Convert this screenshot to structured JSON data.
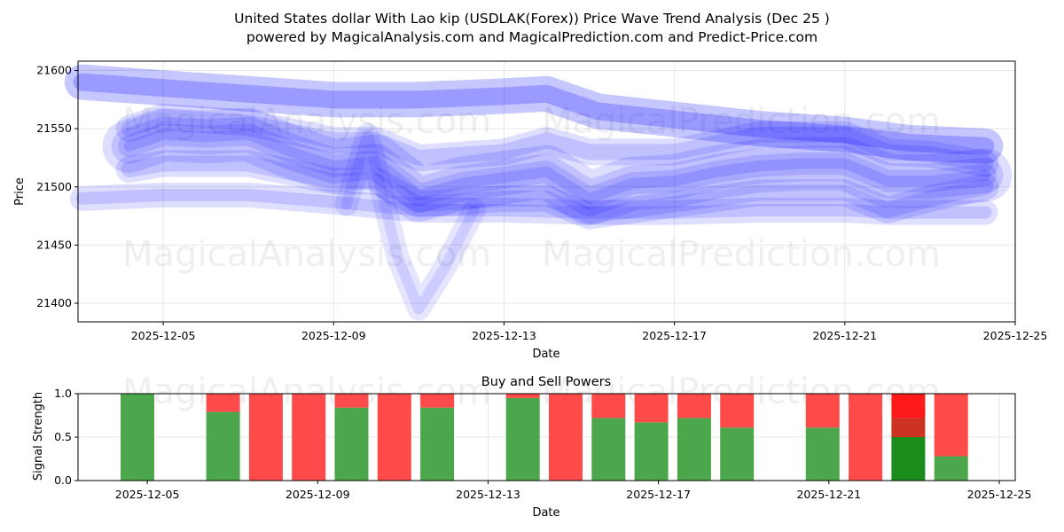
{
  "title_line1": "United States dollar With Lao kip (USDLAK(Forex)) Price Wave Trend Analysis (Dec 25 )",
  "title_line2": "powered by MagicalAnalysis.com and MagicalPrediction.com and Predict-Price.com",
  "watermark": [
    "MagicalAnalysis.com",
    "MagicalPrediction.com"
  ],
  "colors": {
    "wave": "#0000ff",
    "buy": "#4ca64c",
    "sell": "#ff4a4a",
    "strong_buy": "#1a8c1a",
    "mid_sell": "#cc3322",
    "strong_sell": "#ff1a1a"
  },
  "chart_data": [
    {
      "type": "line",
      "title": "",
      "xlabel": "Date",
      "ylabel": "Price",
      "xlim": [
        "2025-12-03",
        "2025-12-25"
      ],
      "ylim": [
        21384,
        21608
      ],
      "xticks": [
        "2025-12-05",
        "2025-12-09",
        "2025-12-13",
        "2025-12-17",
        "2025-12-21",
        "2025-12-25"
      ],
      "yticks": [
        21400,
        21450,
        21500,
        21550,
        21600
      ],
      "grid": true,
      "series": [
        {
          "name": "wave-center",
          "x": [
            4.2,
            5,
            6,
            7,
            8,
            9,
            10,
            11,
            12,
            13,
            14,
            15,
            16,
            17,
            18,
            19,
            20,
            21,
            22,
            23,
            24.3
          ],
          "y": [
            21535,
            21545,
            21543,
            21545,
            21530,
            21518,
            21522,
            21493,
            21503,
            21508,
            21513,
            21490,
            21503,
            21505,
            21513,
            21518,
            21520,
            21520,
            21505,
            21505,
            21510
          ]
        },
        {
          "name": "wave-upper",
          "x": [
            4.2,
            5,
            7,
            9,
            10,
            11,
            13,
            14,
            15,
            17,
            19,
            21,
            22,
            23,
            24.3
          ],
          "y": [
            21550,
            21560,
            21555,
            21540,
            21540,
            21525,
            21530,
            21540,
            21530,
            21530,
            21545,
            21545,
            21530,
            21528,
            21520
          ]
        },
        {
          "name": "wave-lower",
          "x": [
            4.2,
            5,
            7,
            9,
            10,
            11,
            13,
            14,
            15,
            17,
            19,
            21,
            22,
            23,
            24.3
          ],
          "y": [
            21515,
            21520,
            21520,
            21505,
            21505,
            21485,
            21490,
            21490,
            21475,
            21485,
            21495,
            21495,
            21480,
            21490,
            21500
          ]
        },
        {
          "name": "wave-high",
          "x": [
            3.1,
            5,
            7,
            9,
            11,
            13,
            14,
            15.2,
            17,
            19,
            21,
            22.5,
            24.3
          ],
          "y": [
            21590,
            21585,
            21580,
            21575,
            21575,
            21578,
            21580,
            21565,
            21558,
            21550,
            21545,
            21538,
            21535
          ]
        },
        {
          "name": "wave-low",
          "x": [
            3.1,
            5,
            7,
            9,
            11,
            13,
            15,
            17,
            19,
            21,
            22,
            23,
            24.3
          ],
          "y": [
            21490,
            21493,
            21493,
            21487,
            21480,
            21480,
            21478,
            21478,
            21480,
            21480,
            21478,
            21478,
            21478
          ]
        },
        {
          "name": "wave-spike",
          "x": [
            9.3,
            9.8,
            10.5,
            11,
            11.6,
            12.3
          ],
          "y": [
            21485,
            21545,
            21440,
            21395,
            21430,
            21480
          ]
        }
      ]
    },
    {
      "type": "bar",
      "title": "Buy and Sell Powers",
      "xlabel": "Date",
      "ylabel": "Signal Strength",
      "ylim": [
        0,
        1
      ],
      "yticks": [
        "0.0",
        "0.5",
        "1.0"
      ],
      "xticks": [
        "2025-12-05",
        "2025-12-09",
        "2025-12-13",
        "2025-12-17",
        "2025-12-21",
        "2025-12-25"
      ],
      "categories": [
        "2025-12-04",
        "2025-12-06",
        "2025-12-07",
        "2025-12-08",
        "2025-12-09",
        "2025-12-10",
        "2025-12-11",
        "2025-12-13",
        "2025-12-14",
        "2025-12-15",
        "2025-12-16",
        "2025-12-17",
        "2025-12-18",
        "2025-12-20",
        "2025-12-21",
        "2025-12-22",
        "2025-12-23"
      ],
      "buy": [
        1.0,
        0.79,
        0,
        0,
        0.84,
        0,
        0.84,
        0.95,
        0,
        0.72,
        0.67,
        0.72,
        0.61,
        0.61,
        0,
        0.5,
        0.28
      ],
      "mid": [
        0,
        0,
        0,
        0,
        0,
        0,
        0,
        0,
        0,
        0,
        0,
        0,
        0,
        0,
        0,
        0.22,
        0
      ]
    }
  ]
}
